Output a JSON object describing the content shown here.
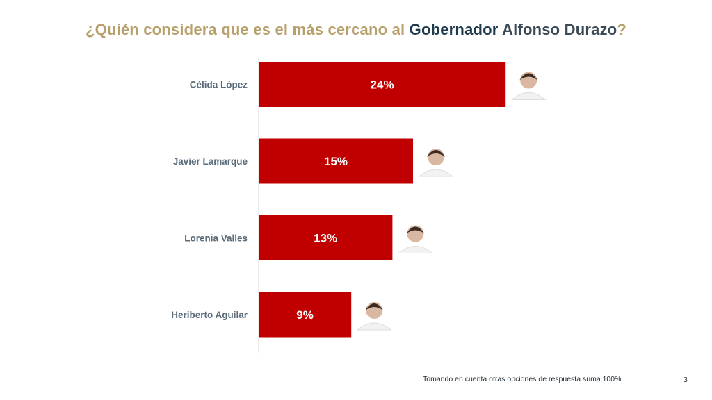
{
  "title": {
    "part1": "¿Quién considera que es el más cercano al ",
    "part2": "Gobernador",
    "part3": " Alfonso Durazo",
    "part4": "?"
  },
  "footnote": "Tomando en cuenta otras opciones de respuesta suma 100%",
  "page_number": "3",
  "colors": {
    "bar": "#c00000",
    "bar_label": "#ffffff",
    "category_label": "#5a6b7a",
    "axis": "#d9d9d9"
  },
  "chart_data": {
    "type": "bar",
    "orientation": "horizontal",
    "categories": [
      "Célida López",
      "Javier Lamarque",
      "Lorenia Valles",
      "Heriberto Aguilar"
    ],
    "values": [
      24,
      15,
      13,
      9
    ],
    "value_labels": [
      "24%",
      "15%",
      "13%",
      "9%"
    ],
    "unit": "%",
    "xlim": [
      0,
      30
    ],
    "grid": false,
    "legend": "none",
    "title": "¿Quién considera que es el más cercano al Gobernador Alfonso Durazo?"
  }
}
